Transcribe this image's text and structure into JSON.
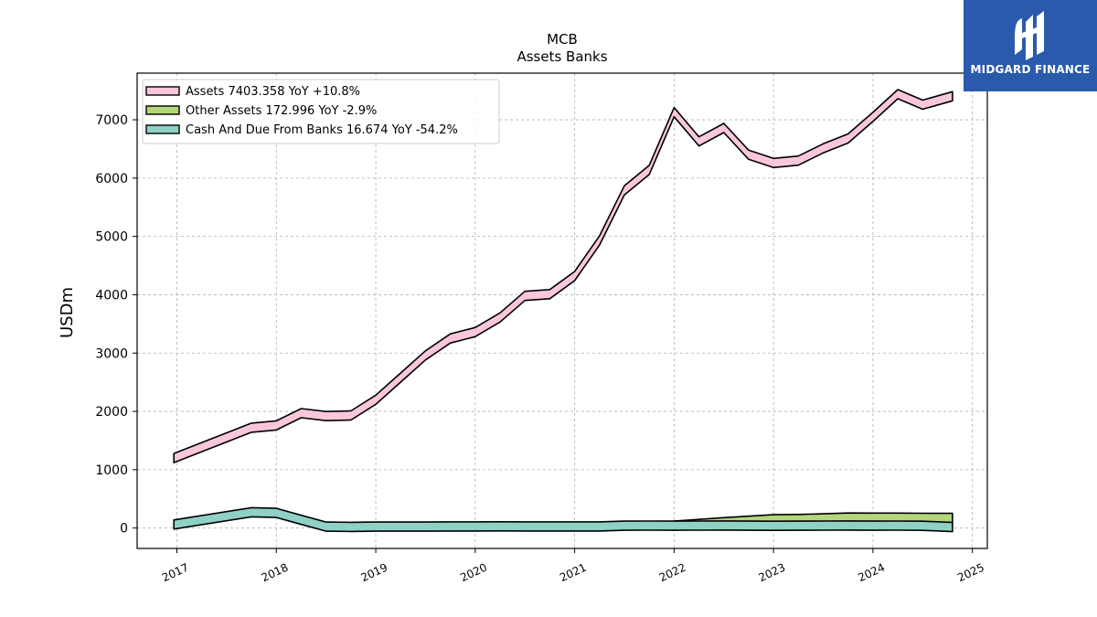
{
  "brand": {
    "name": "MIDGARD FINANCE",
    "logo_icon": "midgard-m-logo-icon",
    "color": "#2a5aab"
  },
  "chart_data": {
    "type": "area",
    "title": "MCB",
    "subtitle": "Assets Banks",
    "ylabel": "USDm",
    "xlabel": "",
    "ylim": [
      -350,
      7800
    ],
    "xlim": [
      2016.6,
      2025.15
    ],
    "yticks": [
      0,
      1000,
      2000,
      3000,
      4000,
      5000,
      6000,
      7000
    ],
    "xticks": [
      2017,
      2018,
      2019,
      2020,
      2021,
      2022,
      2023,
      2024,
      2025
    ],
    "xtick_labels": [
      "2017",
      "2018",
      "2019",
      "2020",
      "2021",
      "2022",
      "2023",
      "2024",
      "2025"
    ],
    "grid": true,
    "legend_position": "top-left",
    "series": [
      {
        "name": "Assets",
        "legend_label": "Assets  7403.358 YoY +10.8%",
        "color": "#f9c6dc",
        "x": [
          2016.97,
          2017.75,
          2018.0,
          2018.25,
          2018.5,
          2018.75,
          2019.0,
          2019.25,
          2019.5,
          2019.75,
          2020.0,
          2020.25,
          2020.5,
          2020.75,
          2021.0,
          2021.25,
          2021.5,
          2021.75,
          2022.0,
          2022.25,
          2022.5,
          2022.75,
          2023.0,
          2023.25,
          2023.5,
          2023.75,
          2024.0,
          2024.25,
          2024.5,
          2024.8
        ],
        "values": [
          1200,
          1720,
          1760,
          1970,
          1920,
          1930,
          2200,
          2580,
          2960,
          3250,
          3360,
          3610,
          3980,
          4010,
          4320,
          4930,
          5790,
          6140,
          7130,
          6630,
          6860,
          6400,
          6260,
          6300,
          6510,
          6680,
          7050,
          7440,
          7260,
          7403.358
        ]
      },
      {
        "name": "Other Assets",
        "legend_label": "Other Assets  172.996 YoY -2.9%",
        "color": "#b3d67a",
        "x": [
          2022.0,
          2022.25,
          2022.5,
          2022.75,
          2023.0,
          2023.25,
          2023.5,
          2023.75,
          2024.0,
          2024.25,
          2024.5,
          2024.8
        ],
        "values": [
          40,
          70,
          100,
          125,
          150,
          155,
          165,
          180,
          178,
          178,
          175,
          172.996
        ]
      },
      {
        "name": "Cash And Due From Banks",
        "legend_label": "Cash And Due From Banks  16.674 YoY -54.2%",
        "color": "#8fd1c4",
        "x": [
          2016.97,
          2017.75,
          2018.0,
          2018.25,
          2018.5,
          2018.75,
          2019.0,
          2019.25,
          2019.5,
          2019.75,
          2020.0,
          2020.25,
          2020.5,
          2020.75,
          2021.0,
          2021.25,
          2021.5,
          2021.75,
          2022.0,
          2022.25,
          2022.5,
          2022.75,
          2023.0,
          2023.25,
          2023.5,
          2023.75,
          2024.0,
          2024.25,
          2024.5,
          2024.8
        ],
        "values": [
          60,
          270,
          260,
          140,
          25,
          20,
          25,
          25,
          25,
          28,
          28,
          30,
          28,
          28,
          28,
          28,
          40,
          42,
          40,
          42,
          44,
          40,
          38,
          40,
          42,
          44,
          40,
          42,
          38,
          16.674
        ]
      }
    ]
  }
}
